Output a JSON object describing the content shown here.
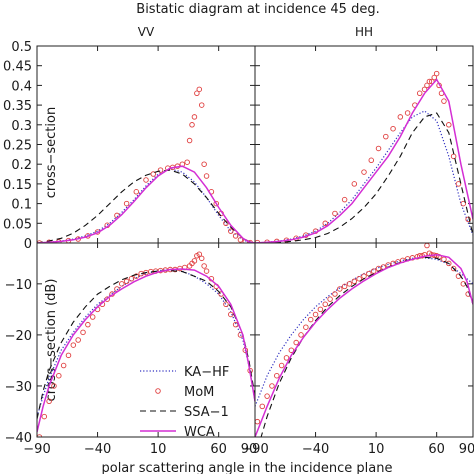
{
  "figure": {
    "title": "Bistatic diagram at incidence 45 deg.",
    "xlabel": "polar scattering angle in the incidence plane"
  },
  "chart_data": [
    {
      "type": "line",
      "title": "VV",
      "ylabel": "cross−section",
      "xlim": [
        -90,
        90
      ],
      "ylim": [
        0,
        0.5
      ],
      "xticks": [
        -90,
        -40,
        10,
        60
      ],
      "xtick_labels": [
        "",
        "",
        "",
        ""
      ],
      "yticks": [
        0,
        0.05,
        0.1,
        0.15,
        0.2,
        0.25,
        0.3,
        0.35,
        0.4,
        0.45,
        0.5
      ],
      "ytick_labels": [
        "0",
        "0.05",
        "0.1",
        "0.15",
        "0.2",
        "0.25",
        "0.3",
        "0.35",
        "0.4",
        "0.45",
        "0.5"
      ],
      "series": [
        {
          "name": "KA−HF",
          "style": "dotted",
          "color": "#3030c0",
          "x": [
            -90,
            -80,
            -70,
            -60,
            -50,
            -40,
            -30,
            -20,
            -10,
            0,
            10,
            20,
            30,
            40,
            50,
            60,
            70,
            80,
            85,
            90
          ],
          "y": [
            0,
            0.002,
            0.005,
            0.01,
            0.018,
            0.03,
            0.05,
            0.078,
            0.11,
            0.145,
            0.175,
            0.188,
            0.18,
            0.155,
            0.115,
            0.07,
            0.03,
            0.008,
            0.002,
            0
          ]
        },
        {
          "name": "MoM",
          "style": "circle",
          "color": "#e04040",
          "x": [
            -88,
            -80,
            -72,
            -64,
            -56,
            -48,
            -40,
            -32,
            -24,
            -16,
            -8,
            0,
            6,
            12,
            18,
            22,
            26,
            30,
            34,
            36,
            38,
            40,
            42,
            44,
            46,
            48,
            50,
            54,
            58,
            62,
            66,
            70,
            74,
            78,
            82,
            86
          ],
          "y": [
            0,
            0.002,
            0.003,
            0.006,
            0.01,
            0.018,
            0.028,
            0.045,
            0.07,
            0.1,
            0.13,
            0.16,
            0.175,
            0.185,
            0.19,
            0.192,
            0.195,
            0.2,
            0.205,
            0.26,
            0.3,
            0.32,
            0.38,
            0.39,
            0.35,
            0.2,
            0.17,
            0.13,
            0.1,
            0.075,
            0.05,
            0.03,
            0.018,
            0.008,
            0.003,
            0.001
          ]
        },
        {
          "name": "SSA−1",
          "style": "dashed",
          "color": "#111111",
          "x": [
            -90,
            -80,
            -70,
            -60,
            -50,
            -40,
            -30,
            -20,
            -10,
            0,
            10,
            20,
            30,
            40,
            50,
            60,
            70,
            80,
            85,
            90
          ],
          "y": [
            0,
            0.005,
            0.012,
            0.025,
            0.045,
            0.07,
            0.1,
            0.13,
            0.155,
            0.172,
            0.182,
            0.185,
            0.175,
            0.15,
            0.115,
            0.075,
            0.04,
            0.012,
            0.004,
            0
          ]
        },
        {
          "name": "WCA",
          "style": "solid",
          "color": "#d42ed4",
          "x": [
            -90,
            -80,
            -70,
            -60,
            -50,
            -40,
            -30,
            -20,
            -10,
            0,
            10,
            20,
            30,
            40,
            50,
            60,
            70,
            80,
            85,
            90
          ],
          "y": [
            0,
            0.002,
            0.004,
            0.008,
            0.015,
            0.026,
            0.045,
            0.072,
            0.105,
            0.14,
            0.17,
            0.19,
            0.195,
            0.18,
            0.14,
            0.09,
            0.045,
            0.012,
            0.003,
            0
          ]
        }
      ]
    },
    {
      "type": "line",
      "title": "HH",
      "ylabel": "",
      "xlim": [
        -90,
        90
      ],
      "ylim": [
        0,
        0.5
      ],
      "xticks": [
        -90,
        -40,
        10,
        60
      ],
      "xtick_labels": [
        "",
        "",
        "",
        ""
      ],
      "yticks": [
        0,
        0.05,
        0.1,
        0.15,
        0.2,
        0.25,
        0.3,
        0.35,
        0.4,
        0.45,
        0.5
      ],
      "ytick_labels": [
        "",
        "",
        "",
        "",
        "",
        "",
        "",
        "",
        "",
        "",
        ""
      ],
      "series": [
        {
          "name": "KA−HF",
          "style": "dotted",
          "color": "#3030c0",
          "x": [
            -90,
            -80,
            -70,
            -60,
            -50,
            -40,
            -30,
            -20,
            -10,
            0,
            10,
            20,
            30,
            40,
            50,
            60,
            70,
            80,
            90
          ],
          "y": [
            0,
            0.002,
            0.005,
            0.01,
            0.018,
            0.03,
            0.05,
            0.078,
            0.11,
            0.15,
            0.19,
            0.235,
            0.28,
            0.32,
            0.335,
            0.31,
            0.22,
            0.1,
            0.02
          ]
        },
        {
          "name": "MoM",
          "style": "circle",
          "color": "#e04040",
          "x": [
            -88,
            -80,
            -72,
            -64,
            -56,
            -48,
            -40,
            -32,
            -24,
            -16,
            -8,
            0,
            6,
            12,
            18,
            24,
            30,
            36,
            42,
            46,
            50,
            52,
            54,
            56,
            58,
            60,
            62,
            64,
            66,
            70,
            74,
            78,
            82,
            86
          ],
          "y": [
            0.001,
            0.002,
            0.004,
            0.007,
            0.012,
            0.02,
            0.03,
            0.05,
            0.075,
            0.11,
            0.15,
            0.18,
            0.21,
            0.24,
            0.27,
            0.29,
            0.32,
            0.33,
            0.35,
            0.38,
            0.39,
            0.4,
            0.41,
            0.41,
            0.42,
            0.43,
            0.4,
            0.38,
            0.36,
            0.3,
            0.22,
            0.15,
            0.1,
            0.06
          ]
        },
        {
          "name": "SSA−1",
          "style": "dashed",
          "color": "#111111",
          "x": [
            -90,
            -80,
            -70,
            -60,
            -50,
            -40,
            -30,
            -20,
            -10,
            0,
            10,
            20,
            30,
            40,
            50,
            60,
            70,
            80,
            90
          ],
          "y": [
            0,
            0.001,
            0.002,
            0.004,
            0.008,
            0.014,
            0.024,
            0.04,
            0.062,
            0.09,
            0.125,
            0.17,
            0.22,
            0.28,
            0.32,
            0.33,
            0.28,
            0.15,
            0.02
          ]
        },
        {
          "name": "WCA",
          "style": "solid",
          "color": "#d42ed4",
          "x": [
            -90,
            -80,
            -70,
            -60,
            -50,
            -40,
            -30,
            -20,
            -10,
            0,
            10,
            20,
            30,
            40,
            50,
            60,
            70,
            80,
            90
          ],
          "y": [
            0,
            0.002,
            0.004,
            0.008,
            0.015,
            0.026,
            0.044,
            0.07,
            0.1,
            0.14,
            0.18,
            0.22,
            0.27,
            0.33,
            0.38,
            0.415,
            0.36,
            0.2,
            0.06
          ]
        }
      ]
    },
    {
      "type": "line",
      "title": "",
      "ylabel": "cross−section (dB)",
      "xlim": [
        -90,
        90
      ],
      "ylim": [
        -40,
        -2
      ],
      "xticks": [
        -90,
        -40,
        10,
        60,
        90
      ],
      "xtick_labels": [
        "−90",
        "−40",
        "10",
        "60",
        "90"
      ],
      "yticks": [
        -40,
        -30,
        -20,
        -10
      ],
      "ytick_labels": [
        "−40",
        "−30",
        "−20",
        "−10"
      ],
      "legend": {
        "position": "bottom-left",
        "entries": [
          "KA−HF",
          "MoM",
          "SSA−1",
          "WCA"
        ]
      },
      "series": [
        {
          "name": "KA−HF",
          "style": "dotted",
          "color": "#3030c0",
          "x": [
            -90,
            -85,
            -80,
            -70,
            -60,
            -50,
            -40,
            -30,
            -20,
            -10,
            0,
            10,
            20,
            30,
            40,
            50,
            60,
            70,
            80,
            85,
            90
          ],
          "y": [
            -36,
            -32,
            -28.5,
            -23,
            -19.5,
            -16.5,
            -14,
            -12.2,
            -10.5,
            -9,
            -8,
            -7.4,
            -7.2,
            -7.5,
            -8.5,
            -10,
            -12,
            -15.5,
            -21,
            -26,
            -33
          ]
        },
        {
          "name": "MoM",
          "style": "circle",
          "color": "#e04040",
          "x": [
            -88,
            -84,
            -80,
            -76,
            -72,
            -68,
            -64,
            -60,
            -56,
            -52,
            -48,
            -44,
            -40,
            -36,
            -32,
            -28,
            -24,
            -20,
            -16,
            -12,
            -8,
            -4,
            0,
            4,
            8,
            12,
            16,
            20,
            24,
            28,
            32,
            36,
            38,
            40,
            42,
            44,
            46,
            48,
            50,
            54,
            58,
            62,
            66,
            70,
            74,
            78,
            82,
            86
          ],
          "y": [
            -40,
            -36,
            -33,
            -30,
            -28,
            -26,
            -24,
            -22,
            -21,
            -19.5,
            -18,
            -16.5,
            -15,
            -14,
            -13,
            -12,
            -11,
            -10,
            -9.5,
            -9,
            -8.5,
            -8,
            -7.8,
            -7.6,
            -7.5,
            -7.4,
            -7.3,
            -7.2,
            -7.2,
            -7,
            -6.8,
            -6.5,
            -6,
            -5.5,
            -4.5,
            -4.2,
            -5,
            -6.5,
            -7.5,
            -9,
            -10.5,
            -12,
            -14,
            -16,
            -18,
            -20,
            -23,
            -27
          ]
        },
        {
          "name": "SSA−1",
          "style": "dashed",
          "color": "#111111",
          "x": [
            -90,
            -85,
            -80,
            -70,
            -60,
            -50,
            -40,
            -30,
            -20,
            -10,
            0,
            10,
            20,
            30,
            40,
            50,
            60,
            70,
            80,
            85,
            90
          ],
          "y": [
            -36.5,
            -31,
            -27,
            -21.5,
            -17.5,
            -14.5,
            -12,
            -10.5,
            -9.2,
            -8.3,
            -7.8,
            -7.5,
            -7.4,
            -7.6,
            -8.5,
            -9.5,
            -11.5,
            -14.5,
            -20,
            -25,
            -32
          ]
        },
        {
          "name": "WCA",
          "style": "solid",
          "color": "#d42ed4",
          "x": [
            -90,
            -85,
            -80,
            -70,
            -60,
            -50,
            -40,
            -30,
            -20,
            -10,
            0,
            10,
            20,
            30,
            40,
            50,
            60,
            70,
            80,
            85,
            90
          ],
          "y": [
            -39,
            -34,
            -30,
            -24,
            -20,
            -17,
            -14.5,
            -12.5,
            -11,
            -9.6,
            -8.5,
            -7.7,
            -7.2,
            -7.1,
            -7.3,
            -8.5,
            -10.5,
            -14,
            -20,
            -26,
            -33
          ]
        }
      ]
    },
    {
      "type": "line",
      "title": "",
      "ylabel": "",
      "xlim": [
        -90,
        90
      ],
      "ylim": [
        -40,
        -2
      ],
      "xticks": [
        -90,
        -40,
        10,
        60,
        90
      ],
      "xtick_labels": [
        "−90",
        "−40",
        "10",
        "60",
        "90"
      ],
      "yticks": [
        -40,
        -30,
        -20,
        -10
      ],
      "ytick_labels": [
        "",
        "",
        "",
        ""
      ],
      "series": [
        {
          "name": "KA−HF",
          "style": "dotted",
          "color": "#3030c0",
          "x": [
            -90,
            -85,
            -80,
            -70,
            -60,
            -50,
            -40,
            -30,
            -20,
            -10,
            0,
            10,
            20,
            30,
            40,
            50,
            60,
            70,
            80,
            85,
            90
          ],
          "y": [
            -34,
            -31,
            -28,
            -23.5,
            -20,
            -17,
            -14.5,
            -12.5,
            -10.8,
            -9.3,
            -8,
            -7,
            -6.2,
            -5.5,
            -5,
            -4.9,
            -5.2,
            -6.2,
            -8,
            -9,
            -10
          ]
        },
        {
          "name": "MoM",
          "style": "circle",
          "color": "#e04040",
          "x": [
            -88,
            -84,
            -80,
            -76,
            -72,
            -68,
            -64,
            -60,
            -56,
            -52,
            -48,
            -44,
            -40,
            -36,
            -32,
            -28,
            -24,
            -20,
            -16,
            -12,
            -8,
            -4,
            0,
            4,
            8,
            12,
            16,
            20,
            24,
            28,
            32,
            36,
            40,
            44,
            46,
            48,
            50,
            52,
            54,
            56,
            58,
            60,
            62,
            66,
            70,
            74,
            78,
            82,
            86
          ],
          "y": [
            -37,
            -34,
            -32,
            -30,
            -28,
            -26,
            -24.5,
            -23,
            -21.5,
            -20,
            -18.5,
            -17,
            -16,
            -15,
            -14,
            -13,
            -12,
            -11,
            -10.5,
            -10,
            -9.5,
            -9,
            -8.5,
            -8,
            -7.5,
            -7,
            -6.7,
            -6.3,
            -6,
            -5.7,
            -5.4,
            -5.1,
            -4.9,
            -4.7,
            -4.5,
            -4.5,
            -4.3,
            -2.5,
            -4,
            -4.3,
            -4.4,
            -4.5,
            -4.7,
            -5.2,
            -6,
            -7,
            -8.5,
            -10,
            -12
          ]
        },
        {
          "name": "SSA−1",
          "style": "dashed",
          "color": "#111111",
          "x": [
            -90,
            -85,
            -80,
            -70,
            -60,
            -50,
            -40,
            -30,
            -20,
            -10,
            0,
            10,
            20,
            30,
            40,
            50,
            60,
            70,
            80,
            85,
            90
          ],
          "y": [
            -44,
            -40,
            -36,
            -29.5,
            -24.5,
            -20.5,
            -17.2,
            -14.5,
            -12.3,
            -10.5,
            -9,
            -7.8,
            -6.7,
            -5.8,
            -5.1,
            -4.8,
            -5,
            -6,
            -8.5,
            -10.5,
            -14
          ]
        },
        {
          "name": "WCA",
          "style": "solid",
          "color": "#d42ed4",
          "x": [
            -90,
            -85,
            -80,
            -70,
            -60,
            -50,
            -40,
            -30,
            -20,
            -10,
            0,
            10,
            20,
            30,
            40,
            50,
            60,
            70,
            80,
            85,
            90
          ],
          "y": [
            -40,
            -37,
            -34,
            -28.5,
            -24,
            -20.5,
            -17.5,
            -15,
            -12.8,
            -11,
            -9.4,
            -8,
            -6.8,
            -5.9,
            -5.2,
            -4.6,
            -4.3,
            -4.8,
            -7,
            -9.5,
            -14
          ]
        }
      ]
    }
  ]
}
